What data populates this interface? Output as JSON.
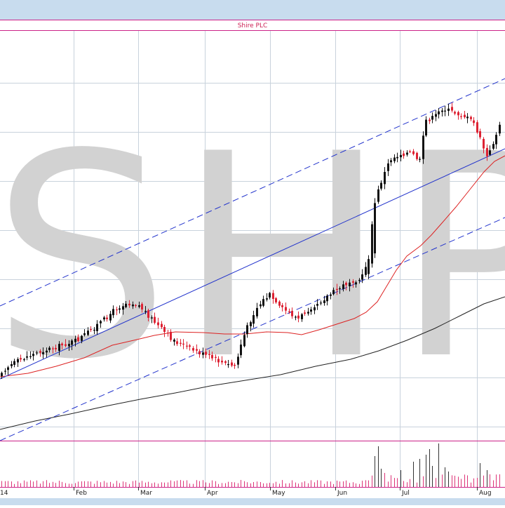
{
  "chart_data": {
    "type": "candlestick",
    "title": "Shire PLC",
    "watermark": "SHP",
    "x_tick_labels": [
      "14",
      "Feb",
      "Mar",
      "Apr",
      "May",
      "Jun",
      "Jul",
      "Aug"
    ],
    "colors": {
      "up_candle": "#111111",
      "down_candle": "#dd2233",
      "volume_bar": "#dd3377",
      "moving_average_short": "#dd2222",
      "moving_average_long": "#222222",
      "trend_channel": "#2233cc",
      "panel_border": "#cc2288",
      "gridline": "#c8d2dc",
      "frame_background": "#c8dcee",
      "watermark": "#d2d2d2"
    },
    "grid": true,
    "indicators": [
      "short moving average",
      "long moving average",
      "trend channel with upper and lower bounds",
      "volume"
    ]
  }
}
